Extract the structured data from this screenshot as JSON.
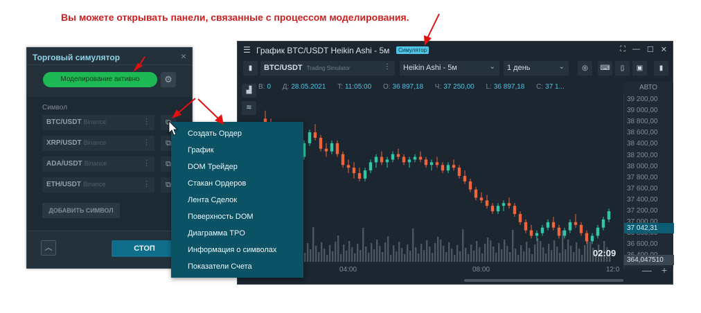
{
  "caption": "Вы можете открывать панели, связанные с процессом моделирования.",
  "simulator": {
    "title": "Торговый симулятор",
    "close": "×",
    "active_button": "Моделирование активно",
    "symbol_label": "Символ",
    "symbols": [
      {
        "name": "BTC/USDT",
        "exchange": "Binance"
      },
      {
        "name": "XRP/USDT",
        "exchange": "Binance"
      },
      {
        "name": "ADA/USDT",
        "exchange": "Binance"
      },
      {
        "name": "ETH/USDT",
        "exchange": "Binance"
      }
    ],
    "add_symbol": "ДОБАВИТЬ СИМВОЛ",
    "stop": "СТОП"
  },
  "context_menu": {
    "items": [
      "Создать Ордер",
      "График",
      "DOM Трейдер",
      "Стакан Ордеров",
      "Лента Сделок",
      "Поверхность DOM",
      "Диаграмма TPO",
      "Информация о символах",
      "Показатели Счета"
    ]
  },
  "chart_window": {
    "title": "График BTC/USDT Heikin Ashi - 5м",
    "badge": "Симулятор",
    "symbol": "BTC/USDT",
    "source": "Trading Simulator",
    "chart_type": "Heikin Ashi - 5м",
    "period": "1 день",
    "ohlc": [
      {
        "k": "B:",
        "v": "0"
      },
      {
        "k": "Д:",
        "v": "28.05.2021"
      },
      {
        "k": "T:",
        "v": "11:05:00"
      },
      {
        "k": "O:",
        "v": "36 897,18"
      },
      {
        "k": "Ч:",
        "v": "37 250,00"
      },
      {
        "k": "L:",
        "v": "36 897,18"
      },
      {
        "k": "C:",
        "v": "37 1..."
      }
    ],
    "auto_label": "АВТО",
    "price_labels": [
      "39 200,00",
      "39 000,00",
      "38 800,00",
      "38 600,00",
      "38 400,00",
      "38 200,00",
      "38 000,00",
      "37 800,00",
      "37 600,00",
      "37 400,00",
      "37 200,00",
      "37 000,00",
      "36 800,00",
      "36 600,00",
      "36 400,00"
    ],
    "current_price": "37 042,31",
    "volume_value": "364,047510",
    "timer": "02:09",
    "time_labels": [
      "04:00",
      "08:00",
      "12:0"
    ],
    "zoom_minus": "—",
    "zoom_plus": "+",
    "colors": {
      "up": "#2fc7a5",
      "down": "#f0643a",
      "volume": "#4c5661"
    }
  },
  "chart_data": {
    "type": "candlestick",
    "series_type": "Heikin Ashi",
    "interval": "5м",
    "ylim": [
      36400,
      39300
    ],
    "x_ticks": [
      "04:00",
      "08:00",
      "12:0"
    ],
    "candles": [
      [
        38900,
        39050,
        38700,
        38800
      ],
      [
        38800,
        38900,
        38500,
        38600
      ],
      [
        38600,
        38750,
        38400,
        38500
      ],
      [
        38500,
        38650,
        38300,
        38600
      ],
      [
        38600,
        38700,
        38400,
        38450
      ],
      [
        38450,
        38550,
        38200,
        38300
      ],
      [
        38300,
        38400,
        38100,
        38200
      ],
      [
        38200,
        38500,
        38150,
        38450
      ],
      [
        38450,
        38700,
        38400,
        38650
      ],
      [
        38650,
        38800,
        38500,
        38550
      ],
      [
        38550,
        38600,
        38300,
        38350
      ],
      [
        38350,
        38450,
        38200,
        38300
      ],
      [
        38300,
        38500,
        38250,
        38450
      ],
      [
        38450,
        38500,
        38200,
        38250
      ],
      [
        38250,
        38300,
        38000,
        38050
      ],
      [
        38050,
        38150,
        37900,
        38000
      ],
      [
        38000,
        38100,
        37800,
        37900
      ],
      [
        37900,
        38000,
        37750,
        37800
      ],
      [
        37800,
        38000,
        37750,
        37950
      ],
      [
        37950,
        38150,
        37900,
        38100
      ],
      [
        38100,
        38250,
        38000,
        38200
      ],
      [
        38200,
        38300,
        38050,
        38100
      ],
      [
        38100,
        38200,
        38000,
        38150
      ],
      [
        38150,
        38300,
        38100,
        38250
      ],
      [
        38250,
        38350,
        38150,
        38200
      ],
      [
        38200,
        38250,
        38050,
        38100
      ],
      [
        38100,
        38200,
        38000,
        38150
      ],
      [
        38150,
        38250,
        38100,
        38200
      ],
      [
        38200,
        38300,
        38100,
        38150
      ],
      [
        38150,
        38200,
        38000,
        38050
      ],
      [
        38050,
        38150,
        37950,
        38100
      ],
      [
        38100,
        38200,
        38000,
        38050
      ],
      [
        38050,
        38100,
        37900,
        37950
      ],
      [
        37950,
        38100,
        37900,
        38050
      ],
      [
        38050,
        38150,
        37950,
        38000
      ],
      [
        38000,
        38050,
        37800,
        37850
      ],
      [
        37850,
        37950,
        37700,
        37750
      ],
      [
        37750,
        37800,
        37550,
        37600
      ],
      [
        37600,
        37650,
        37400,
        37450
      ],
      [
        37450,
        37550,
        37350,
        37400
      ],
      [
        37400,
        37500,
        37250,
        37300
      ],
      [
        37300,
        37350,
        37150,
        37200
      ],
      [
        37200,
        37350,
        37150,
        37300
      ],
      [
        37300,
        37400,
        37200,
        37350
      ],
      [
        37350,
        37450,
        37250,
        37300
      ],
      [
        37300,
        37350,
        37100,
        37150
      ],
      [
        37150,
        37200,
        36950,
        37000
      ],
      [
        37000,
        37050,
        36800,
        36850
      ],
      [
        36850,
        36950,
        36700,
        36750
      ],
      [
        36750,
        36850,
        36650,
        36800
      ],
      [
        36800,
        36950,
        36750,
        36900
      ],
      [
        36900,
        37050,
        36850,
        37000
      ],
      [
        37000,
        37100,
        36850,
        36900
      ],
      [
        36900,
        36950,
        36700,
        36750
      ],
      [
        36750,
        36900,
        36700,
        36850
      ],
      [
        36850,
        37050,
        36800,
        37000
      ],
      [
        37000,
        37150,
        36900,
        36950
      ],
      [
        36950,
        37000,
        36750,
        36800
      ],
      [
        36800,
        36850,
        36600,
        36650
      ],
      [
        36650,
        36800,
        36600,
        36750
      ],
      [
        36750,
        36950,
        36700,
        36900
      ],
      [
        36900,
        37100,
        36850,
        37050
      ],
      [
        37050,
        37250,
        37000,
        37200
      ]
    ],
    "current": 37042.31
  }
}
